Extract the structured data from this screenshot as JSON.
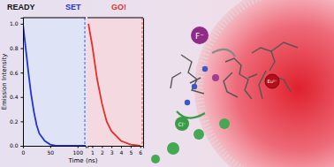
{
  "chart_data": [
    {
      "type": "line",
      "y_label": "Emission Intensity",
      "x_label": "Time (ns)",
      "x": [
        0,
        5,
        10,
        15,
        20,
        25,
        30,
        40,
        50,
        60,
        80,
        100,
        115
      ],
      "series": [
        {
          "color": "#2233d6",
          "values": [
            1.0,
            0.8,
            0.6,
            0.42,
            0.28,
            0.17,
            0.1,
            0.04,
            0.01,
            0.0,
            0.0,
            0.0,
            0.0
          ]
        }
      ],
      "xlim": [
        0,
        115
      ],
      "xticks": [
        0,
        50,
        100
      ],
      "ylim": [
        0,
        1.05
      ],
      "yticks": [
        {
          "value": 0,
          "label": "0.0"
        },
        {
          "value": 0.2,
          "label": "0.2"
        },
        {
          "value": 0.4,
          "label": "0.4"
        },
        {
          "value": 0.6,
          "label": "0.6"
        },
        {
          "value": 0.8,
          "label": "0.8"
        },
        {
          "value": 1,
          "label": "1.0"
        }
      ]
    },
    {
      "type": "line",
      "x": [
        0.6,
        1,
        1.5,
        2,
        2.5,
        3,
        4,
        5,
        6
      ],
      "series": [
        {
          "color": "#e3302a",
          "values": [
            1.0,
            0.82,
            0.55,
            0.35,
            0.2,
            0.12,
            0.04,
            0.01,
            0.0
          ]
        }
      ],
      "xlim": [
        0.5,
        6.3
      ],
      "xticks": [
        1,
        2,
        3,
        4,
        5,
        6
      ],
      "ylim": [
        0,
        1.05
      ],
      "tick_labels": "x"
    }
  ],
  "header": {
    "words": [
      "READY",
      "SET",
      "GO!"
    ]
  },
  "ions": {
    "fluoride": "F⁻",
    "chloride": "Cl⁻",
    "europium": "Eu³⁺"
  }
}
